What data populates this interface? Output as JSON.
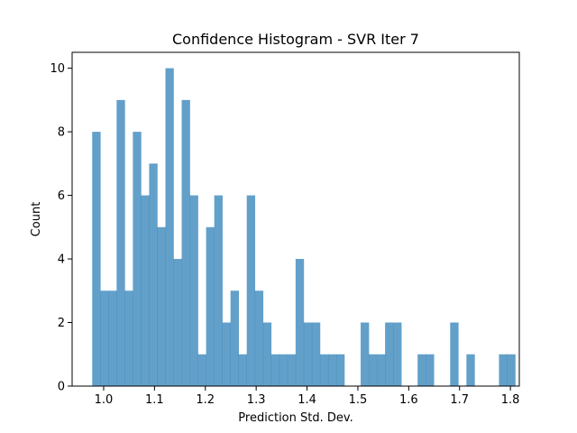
{
  "chart_data": {
    "type": "bar",
    "title": "Confidence Histogram - SVR Iter 7",
    "xlabel": "Prediction Std. Dev.",
    "ylabel": "Count",
    "bar_color": "#1f77b4",
    "bar_alpha": 0.7,
    "bin_start": 0.9775,
    "bin_width": 0.016,
    "counts": [
      8,
      3,
      3,
      9,
      3,
      8,
      6,
      7,
      5,
      10,
      4,
      9,
      6,
      1,
      5,
      6,
      2,
      3,
      1,
      6,
      3,
      2,
      1,
      1,
      1,
      4,
      2,
      2,
      1,
      1,
      1,
      0,
      0,
      2,
      1,
      1,
      2,
      2,
      0,
      0,
      1,
      1,
      0,
      0,
      2,
      0,
      1,
      0,
      0,
      0,
      1,
      1
    ],
    "xlim": [
      0.938,
      1.8175
    ],
    "ylim": [
      0,
      10.5
    ],
    "xticks": [
      1.0,
      1.1,
      1.2,
      1.3,
      1.4,
      1.5,
      1.6,
      1.7,
      1.8
    ],
    "xtick_labels": [
      "1.0",
      "1.1",
      "1.2",
      "1.3",
      "1.4",
      "1.5",
      "1.6",
      "1.7",
      "1.8"
    ],
    "yticks": [
      0,
      2,
      4,
      6,
      8,
      10
    ],
    "ytick_labels": [
      "0",
      "2",
      "4",
      "6",
      "8",
      "10"
    ],
    "grid": false,
    "legend": "none"
  }
}
